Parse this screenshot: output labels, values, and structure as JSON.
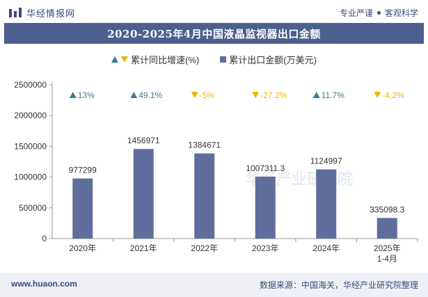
{
  "header": {
    "brand": "华经情报网",
    "slogan_left": "专业严谨",
    "slogan_right": "客观科学"
  },
  "footer": {
    "url": "www.huaon.com",
    "source": "数据来源：中国海关，华经产业研究院整理"
  },
  "watermark": "华经产业研究院",
  "colors": {
    "bar": "#5e6d9c",
    "title_band": "#4d5f8e",
    "up": "#3b7a8f",
    "down": "#f0b400"
  },
  "chart_data": {
    "type": "bar",
    "title": "2020-2025年4月中国液晶监视器出口金额",
    "categories": [
      "2020年",
      "2021年",
      "2022年",
      "2023年",
      "2024年",
      "2025年\n1-4月"
    ],
    "series": [
      {
        "name": "累计出口金额(万美元)",
        "values": [
          977299,
          1456971,
          1384671,
          1007311.3,
          1124997,
          335098.3
        ],
        "labels": [
          "977299",
          "1456971",
          "1384671",
          "1007311.3",
          "1124997",
          "335098.3"
        ]
      },
      {
        "name": "累计同比增速(%)",
        "values": [
          13,
          49.1,
          -5,
          -27.2,
          11.7,
          -4.2
        ],
        "labels": [
          "13%",
          "49.1%",
          "-5%",
          "-27.2%",
          "11.7%",
          "-4.2%"
        ]
      }
    ],
    "ylim": [
      0,
      2500000
    ],
    "yticks": [
      0,
      500000,
      1000000,
      1500000,
      2000000,
      2500000
    ],
    "ytick_labels": [
      "0",
      "500000",
      "1000000",
      "1500000",
      "2000000",
      "2500000"
    ],
    "grid": false,
    "legend_position": "top-center"
  }
}
